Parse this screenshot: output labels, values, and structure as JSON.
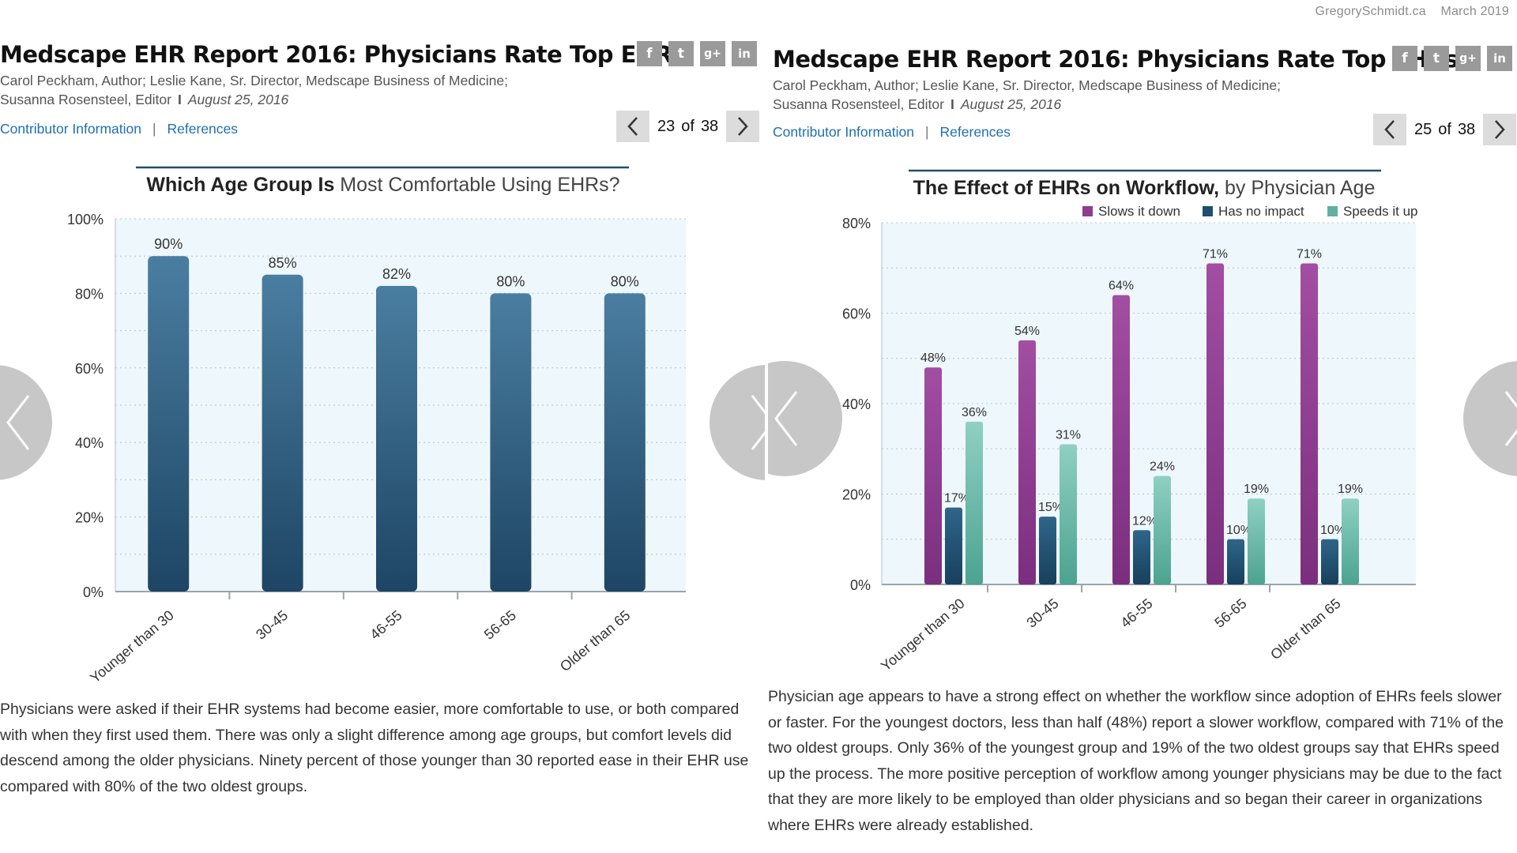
{
  "watermark": {
    "site": "GregorySchmidt.ca",
    "date": "March 2019"
  },
  "colors": {
    "link": "#1f6fb2",
    "bar_single": "#2e5f85",
    "slows": "#8e3d8f",
    "no_impact": "#1f4e6e",
    "speeds": "#5fb0a0",
    "plot_bg": "#eef7fc"
  },
  "panels": [
    {
      "title": "Medscape EHR Report 2016: Physicians Rate Top EHRs",
      "byline_line1": "Carol Peckham, Author; Leslie Kane, Sr. Director, Medscape Business of Medicine;",
      "byline_name": "Susanna Rosensteel, Editor",
      "byline_sep": "I",
      "date": "August 25, 2016",
      "links": [
        "Contributor Information",
        "References"
      ],
      "link_sep": "|",
      "social": [
        "f",
        "t",
        "g+",
        "in"
      ],
      "pager": {
        "current": "23",
        "of": "of",
        "total": "38"
      },
      "description": "Physicians were asked if their EHR systems had become easier, more comfortable to use, or both compared with when they first used them. There was only a slight difference among age groups, but comfort levels did descend among the older physicians. Ninety percent of those younger than 30 reported ease in their EHR use compared with 80% of the two oldest groups."
    },
    {
      "title": "Medscape EHR Report 2016: Physicians Rate Top EHRs",
      "byline_line1": "Carol Peckham, Author; Leslie Kane, Sr. Director, Medscape Business of Medicine;",
      "byline_name": "Susanna Rosensteel, Editor",
      "byline_sep": "I",
      "date": "August 25, 2016",
      "links": [
        "Contributor Information",
        "References"
      ],
      "link_sep": "|",
      "social": [
        "f",
        "t",
        "g+",
        "in"
      ],
      "pager": {
        "current": "25",
        "of": "of",
        "total": "38"
      },
      "description": "Physician age appears to have a strong effect on whether the workflow since adoption of EHRs feels slower or faster. For the youngest doctors, less than half (48%) report a slower workflow, compared with 71% of the two oldest groups. Only 36% of the youngest group and 19% of the two oldest groups say that EHRs speed up the process. The more positive perception of workflow among younger physicians may be due to the fact that they are more likely to be employed than older physicians and so began their career in organizations where EHRs were already established."
    }
  ],
  "chart_data": [
    {
      "type": "bar",
      "title_bold": "Which Age Group Is",
      "title_rest": "Most Comfortable Using EHRs?",
      "categories": [
        "Younger than 30",
        "30-45",
        "46-55",
        "56-65",
        "Older than 65"
      ],
      "values": [
        90,
        85,
        82,
        80,
        80
      ],
      "data_labels": [
        "90%",
        "85%",
        "82%",
        "80%",
        "80%"
      ],
      "ylim": [
        0,
        100
      ],
      "yticks": [
        0,
        20,
        40,
        60,
        80,
        100
      ],
      "ytick_labels": [
        "0%",
        "20%",
        "40%",
        "60%",
        "80%",
        "100%"
      ],
      "grid": true
    },
    {
      "type": "bar",
      "title_bold": "The Effect of EHRs on Workflow,",
      "title_rest": "by Physician Age",
      "categories": [
        "Younger than 30",
        "30-45",
        "46-55",
        "56-65",
        "Older than 65"
      ],
      "series": [
        {
          "name": "Slows it down",
          "values": [
            48,
            54,
            64,
            71,
            71
          ],
          "labels": [
            "48%",
            "54%",
            "64%",
            "71%",
            "71%"
          ]
        },
        {
          "name": "Has no impact",
          "values": [
            17,
            15,
            12,
            10,
            10
          ],
          "labels": [
            "17%",
            "15%",
            "12%",
            "10%",
            "10%"
          ]
        },
        {
          "name": "Speeds it up",
          "values": [
            36,
            31,
            24,
            19,
            19
          ],
          "labels": [
            "36%",
            "31%",
            "24%",
            "19%",
            "19%"
          ]
        }
      ],
      "ylim": [
        0,
        80
      ],
      "yticks": [
        0,
        20,
        40,
        60,
        80
      ],
      "ytick_labels": [
        "0%",
        "20%",
        "40%",
        "60%",
        "80%"
      ],
      "legend": "top",
      "grid": true
    }
  ]
}
